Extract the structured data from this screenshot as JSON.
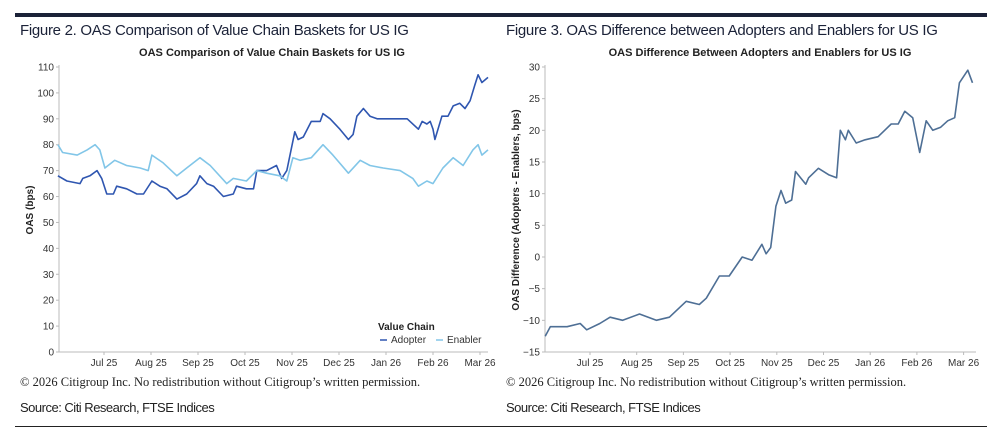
{
  "colors": {
    "rule": "#1b2238",
    "adopter": "#2f56b0",
    "enabler": "#82c6e8",
    "difference": "#4e6f95",
    "axis": "#bbbbbb"
  },
  "footer": {
    "copyright": "© 2026 Citigroup Inc. No redistribution without Citigroup’s written permission.",
    "source": "Source: Citi Research, FTSE Indices"
  },
  "chart_data": [
    {
      "figure_label": "Figure 2. OAS Comparison of Value Chain Baskets for US IG",
      "type": "line",
      "title": "OAS Comparison of Value Chain Baskets for US IG",
      "xlabel": "",
      "ylabel": "OAS (bps)",
      "x_units": "months since Jul 2025 (0 = Jul 25)",
      "xticks": [
        {
          "v": 0,
          "label": "Jul 25"
        },
        {
          "v": 1,
          "label": "Aug 25"
        },
        {
          "v": 2,
          "label": "Sep 25"
        },
        {
          "v": 3,
          "label": "Oct 25"
        },
        {
          "v": 4,
          "label": "Nov 25"
        },
        {
          "v": 5,
          "label": "Dec 25"
        },
        {
          "v": 6,
          "label": "Jan 26"
        },
        {
          "v": 7,
          "label": "Feb 26"
        },
        {
          "v": 8,
          "label": "Mar 26"
        }
      ],
      "yticks": [
        0,
        10,
        20,
        30,
        40,
        50,
        60,
        70,
        80,
        90,
        100,
        110
      ],
      "xlim": [
        -0.98,
        8.2
      ],
      "ylim": [
        0,
        110
      ],
      "legend": {
        "title": "Value Chain",
        "placement": "bottom-right"
      },
      "series": [
        {
          "name": "Adopter",
          "color_key": "adopter",
          "points": [
            [
              -0.98,
              68
            ],
            [
              -0.79,
              66
            ],
            [
              -0.51,
              65
            ],
            [
              -0.45,
              67
            ],
            [
              -0.3,
              68
            ],
            [
              -0.15,
              70
            ],
            [
              -0.05,
              67
            ],
            [
              0.06,
              61
            ],
            [
              0.2,
              61
            ],
            [
              0.27,
              64
            ],
            [
              0.48,
              63
            ],
            [
              0.7,
              61
            ],
            [
              0.84,
              61
            ],
            [
              1.02,
              66
            ],
            [
              1.19,
              64
            ],
            [
              1.34,
              63
            ],
            [
              1.55,
              59
            ],
            [
              1.76,
              61
            ],
            [
              1.97,
              65
            ],
            [
              2.04,
              68
            ],
            [
              2.19,
              65
            ],
            [
              2.33,
              64
            ],
            [
              2.54,
              60
            ],
            [
              2.75,
              61
            ],
            [
              2.82,
              64
            ],
            [
              3.03,
              63
            ],
            [
              3.18,
              63
            ],
            [
              3.25,
              70
            ],
            [
              3.46,
              70
            ],
            [
              3.67,
              72
            ],
            [
              3.78,
              67
            ],
            [
              3.89,
              70
            ],
            [
              4.06,
              85
            ],
            [
              4.13,
              82
            ],
            [
              4.24,
              83
            ],
            [
              4.41,
              89
            ],
            [
              4.6,
              89
            ],
            [
              4.66,
              92
            ],
            [
              4.81,
              90
            ],
            [
              5.02,
              86
            ],
            [
              5.2,
              82
            ],
            [
              5.3,
              84
            ],
            [
              5.38,
              91
            ],
            [
              5.52,
              94
            ],
            [
              5.66,
              91
            ],
            [
              5.81,
              90
            ],
            [
              6.02,
              90
            ],
            [
              6.23,
              90
            ],
            [
              6.45,
              90
            ],
            [
              6.69,
              86
            ],
            [
              6.77,
              89
            ],
            [
              6.87,
              88
            ],
            [
              6.94,
              89
            ],
            [
              7.0,
              86
            ],
            [
              7.04,
              82
            ],
            [
              7.19,
              91
            ],
            [
              7.32,
              91
            ],
            [
              7.43,
              95
            ],
            [
              7.57,
              96
            ],
            [
              7.68,
              94
            ],
            [
              7.79,
              97
            ],
            [
              7.89,
              103
            ],
            [
              7.96,
              107
            ],
            [
              8.04,
              104
            ],
            [
              8.17,
              106
            ]
          ]
        },
        {
          "name": "Enabler",
          "color_key": "enabler",
          "points": [
            [
              -0.98,
              80
            ],
            [
              -0.88,
              77
            ],
            [
              -0.57,
              76
            ],
            [
              -0.36,
              78
            ],
            [
              -0.19,
              80
            ],
            [
              -0.09,
              78
            ],
            [
              0.02,
              71
            ],
            [
              0.23,
              74
            ],
            [
              0.48,
              72
            ],
            [
              0.77,
              71
            ],
            [
              0.94,
              70
            ],
            [
              1.02,
              76
            ],
            [
              1.26,
              73
            ],
            [
              1.55,
              68
            ],
            [
              1.76,
              71
            ],
            [
              2.04,
              75
            ],
            [
              2.26,
              72
            ],
            [
              2.61,
              65
            ],
            [
              2.75,
              67
            ],
            [
              3.03,
              66
            ],
            [
              3.25,
              70
            ],
            [
              3.46,
              69
            ],
            [
              3.74,
              68
            ],
            [
              3.89,
              66
            ],
            [
              4.02,
              75
            ],
            [
              4.17,
              74
            ],
            [
              4.41,
              75
            ],
            [
              4.66,
              80
            ],
            [
              4.87,
              76
            ],
            [
              5.2,
              69
            ],
            [
              5.45,
              74
            ],
            [
              5.66,
              72
            ],
            [
              5.94,
              71
            ],
            [
              6.3,
              70
            ],
            [
              6.57,
              67
            ],
            [
              6.69,
              64
            ],
            [
              6.87,
              66
            ],
            [
              7.0,
              65
            ],
            [
              7.21,
              71
            ],
            [
              7.43,
              75
            ],
            [
              7.64,
              72
            ],
            [
              7.85,
              78
            ],
            [
              7.96,
              80
            ],
            [
              8.04,
              76
            ],
            [
              8.17,
              78
            ]
          ]
        }
      ]
    },
    {
      "figure_label": "Figure 3. OAS Difference between Adopters and Enablers for US IG",
      "type": "line",
      "title": "OAS Difference Between Adopters and Enablers for US IG",
      "xlabel": "",
      "ylabel": "OAS Difference (Adopters - Enablers, bps)",
      "x_units": "months since Jul 2025 (0 = Jul 25)",
      "xticks": [
        {
          "v": 0,
          "label": "Jul 25"
        },
        {
          "v": 1,
          "label": "Aug 25"
        },
        {
          "v": 2,
          "label": "Sep 25"
        },
        {
          "v": 3,
          "label": "Oct 25"
        },
        {
          "v": 4,
          "label": "Nov 25"
        },
        {
          "v": 5,
          "label": "Dec 25"
        },
        {
          "v": 6,
          "label": "Jan 26"
        },
        {
          "v": 7,
          "label": "Feb 26"
        },
        {
          "v": 8,
          "label": "Mar 26"
        }
      ],
      "yticks": [
        -15,
        -10,
        -5,
        0,
        5,
        10,
        15,
        20,
        25,
        30
      ],
      "xlim": [
        -0.96,
        8.22
      ],
      "ylim": [
        -15,
        30
      ],
      "series": [
        {
          "name": "Adopters - Enablers",
          "color_key": "difference",
          "points": [
            [
              -0.96,
              -12.5
            ],
            [
              -0.85,
              -11
            ],
            [
              -0.49,
              -11
            ],
            [
              -0.21,
              -10.5
            ],
            [
              -0.07,
              -11.5
            ],
            [
              0.21,
              -10.5
            ],
            [
              0.43,
              -9.5
            ],
            [
              0.7,
              -10
            ],
            [
              1.06,
              -9
            ],
            [
              1.42,
              -10
            ],
            [
              1.7,
              -9.5
            ],
            [
              2.06,
              -7
            ],
            [
              2.34,
              -7.5
            ],
            [
              2.49,
              -6.5
            ],
            [
              2.77,
              -3
            ],
            [
              2.98,
              -3
            ],
            [
              3.26,
              0
            ],
            [
              3.47,
              -0.5
            ],
            [
              3.68,
              2
            ],
            [
              3.77,
              0.5
            ],
            [
              3.87,
              1.5
            ],
            [
              3.98,
              8
            ],
            [
              4.09,
              10.5
            ],
            [
              4.19,
              8.5
            ],
            [
              4.32,
              9
            ],
            [
              4.4,
              13.5
            ],
            [
              4.62,
              11.5
            ],
            [
              4.68,
              12.5
            ],
            [
              4.89,
              14
            ],
            [
              5.11,
              13
            ],
            [
              5.28,
              12.5
            ],
            [
              5.36,
              20
            ],
            [
              5.47,
              18.5
            ],
            [
              5.53,
              20
            ],
            [
              5.7,
              18
            ],
            [
              5.89,
              18.5
            ],
            [
              6.17,
              19
            ],
            [
              6.45,
              21
            ],
            [
              6.6,
              21
            ],
            [
              6.74,
              23
            ],
            [
              6.91,
              22
            ],
            [
              7.06,
              16.5
            ],
            [
              7.2,
              21.5
            ],
            [
              7.34,
              20
            ],
            [
              7.51,
              20.5
            ],
            [
              7.66,
              21.5
            ],
            [
              7.81,
              22
            ],
            [
              7.91,
              27.5
            ],
            [
              8.09,
              29.5
            ],
            [
              8.19,
              27.5
            ]
          ]
        }
      ]
    }
  ]
}
